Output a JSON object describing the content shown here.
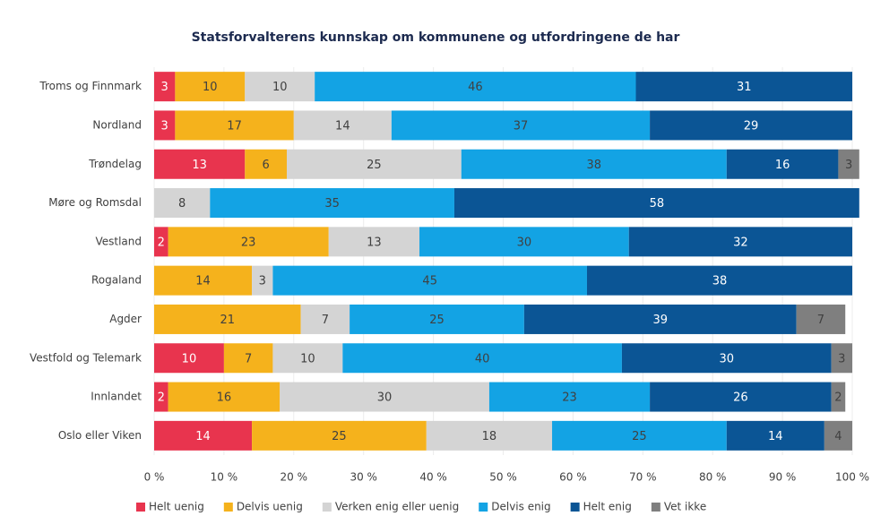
{
  "chart_data": {
    "type": "stacked-bar-horizontal",
    "title": "Statsforvalterens kunnskap om kommunene og utfordringene de har",
    "categories": [
      "Troms og Finnmark",
      "Nordland",
      "Trøndelag",
      "Møre og Romsdal",
      "Vestland",
      "Rogaland",
      "Agder",
      "Vestfold og Telemark",
      "Innlandet",
      "Oslo eller Viken"
    ],
    "series": [
      {
        "name": "Helt uenig",
        "color": "#e8344e",
        "values": [
          3,
          3,
          13,
          null,
          2,
          null,
          null,
          10,
          2,
          14
        ]
      },
      {
        "name": "Delvis uenig",
        "color": "#f5b21c",
        "values": [
          10,
          17,
          6,
          null,
          23,
          14,
          21,
          7,
          16,
          25
        ]
      },
      {
        "name": "Verken enig eller uenig",
        "color": "#d4d4d4",
        "values": [
          10,
          14,
          25,
          8,
          13,
          3,
          7,
          10,
          30,
          18
        ]
      },
      {
        "name": "Delvis enig",
        "color": "#13a3e4",
        "values": [
          46,
          37,
          38,
          35,
          30,
          45,
          25,
          40,
          23,
          25
        ]
      },
      {
        "name": "Helt enig",
        "color": "#0b5595",
        "values": [
          31,
          29,
          16,
          58,
          32,
          38,
          39,
          30,
          26,
          14
        ]
      },
      {
        "name": "Vet ikke",
        "color": "#7f7f7f",
        "values": [
          null,
          null,
          3,
          null,
          null,
          null,
          7,
          3,
          2,
          4
        ]
      }
    ],
    "xlim": [
      0,
      100
    ],
    "xticks": [
      {
        "value": 0,
        "label": "0 %"
      },
      {
        "value": 10,
        "label": "10 %"
      },
      {
        "value": 20,
        "label": "20 %"
      },
      {
        "value": 30,
        "label": "30 %"
      },
      {
        "value": 40,
        "label": "40 %"
      },
      {
        "value": 50,
        "label": "50 %"
      },
      {
        "value": 60,
        "label": "60 %"
      },
      {
        "value": 70,
        "label": "70 %"
      },
      {
        "value": 80,
        "label": "80 %"
      },
      {
        "value": 90,
        "label": "90 %"
      },
      {
        "value": 100,
        "label": "100 %"
      }
    ],
    "legend": "bottom"
  }
}
